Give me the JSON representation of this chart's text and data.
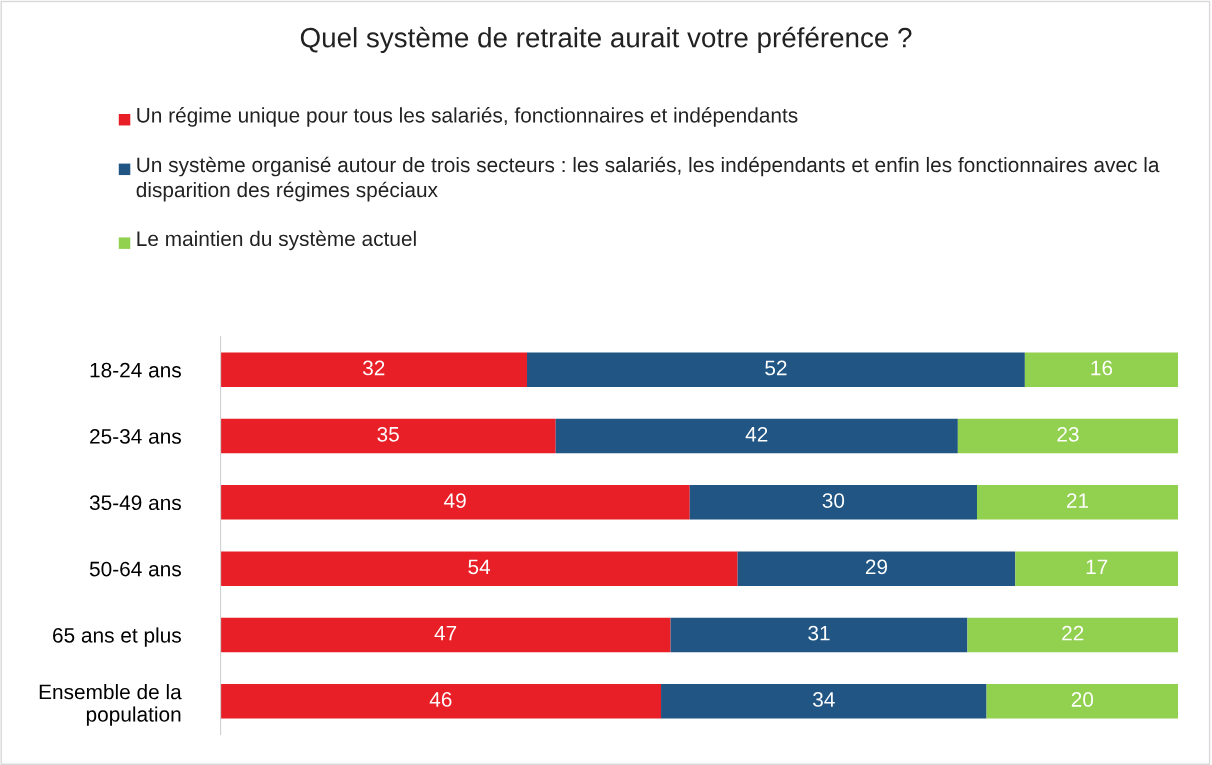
{
  "chart_data": {
    "type": "bar",
    "orientation": "horizontal",
    "stacked": true,
    "title": "Quel système de retraite aurait votre préférence ?",
    "categories": [
      "18-24 ans",
      "25-34 ans",
      "35-49 ans",
      "50-64 ans",
      "65 ans et plus",
      "Ensemble de la population"
    ],
    "series": [
      {
        "name": "Un régime unique pour tous les salariés, fonctionnaires et indépendants",
        "color": "#e81f27",
        "values": [
          32,
          35,
          49,
          54,
          47,
          46
        ]
      },
      {
        "name": "Un système organisé autour de trois secteurs : les salariés, les indépendants et enfin les fonctionnaires avec la disparition des régimes spéciaux",
        "color": "#215584",
        "values": [
          52,
          42,
          30,
          29,
          31,
          34
        ]
      },
      {
        "name": "Le maintien du système actuel",
        "color": "#92d050",
        "values": [
          16,
          23,
          21,
          17,
          22,
          20
        ]
      }
    ],
    "data_labels": true,
    "legend": "top",
    "grid": false
  }
}
